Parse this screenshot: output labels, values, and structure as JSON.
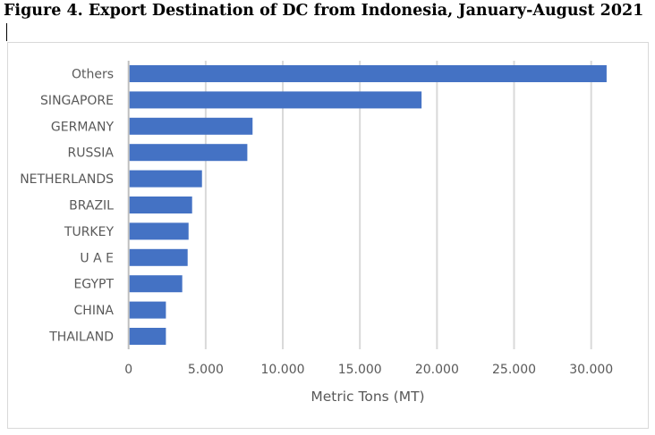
{
  "chart_data": {
    "type": "bar",
    "orientation": "horizontal",
    "title": "Figure 4. Export Destination of DC from Indonesia, January-August 2021",
    "xlabel": "Metric Tons (MT)",
    "ylabel": "",
    "categories": [
      "Others",
      "SINGAPORE",
      "GERMANY",
      "RUSSIA",
      "NETHERLANDS",
      "BRAZIL",
      "TURKEY",
      "U A E",
      "EGYPT",
      "CHINA",
      "THAILAND"
    ],
    "values": [
      31000,
      19000,
      8040,
      7700,
      4760,
      4120,
      3890,
      3830,
      3480,
      2420,
      2420
    ],
    "xticks": [
      0,
      5000,
      10000,
      15000,
      20000,
      25000,
      30000
    ],
    "xtick_labels": [
      "0",
      "5.000",
      "10.000",
      "15.000",
      "20.000",
      "25.000",
      "30.000"
    ],
    "xlim": [
      0,
      32000
    ],
    "grid": true,
    "legend": "none",
    "bar_color": "#4472C4",
    "grid_color": "#D9D9D9"
  }
}
